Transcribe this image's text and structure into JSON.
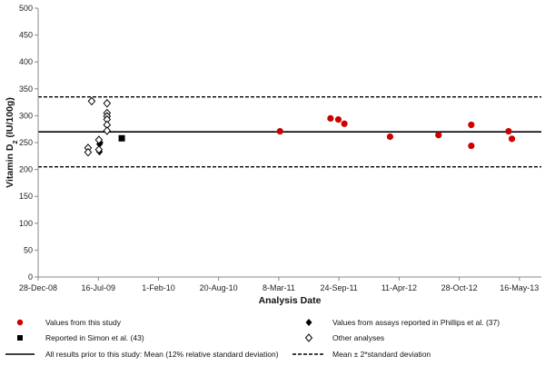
{
  "chart_data": {
    "type": "scatter",
    "xlabel": "Analysis Date",
    "ylabel_main": "Vitamin D",
    "ylabel_sub": "2",
    "ylabel_tail": " (IU/100g)",
    "ylim": [
      0,
      500
    ],
    "yticks": [
      0,
      50,
      100,
      150,
      200,
      250,
      300,
      350,
      400,
      450,
      500
    ],
    "xlim": [
      "2008-12-28",
      "2013-07-28"
    ],
    "xticks": [
      {
        "date": "2008-12-28",
        "label": "28-Dec-08"
      },
      {
        "date": "2009-07-16",
        "label": "16-Jul-09"
      },
      {
        "date": "2010-02-01",
        "label": "1-Feb-10"
      },
      {
        "date": "2010-08-20",
        "label": "20-Aug-10"
      },
      {
        "date": "2011-03-08",
        "label": "8-Mar-11"
      },
      {
        "date": "2011-09-24",
        "label": "24-Sep-11"
      },
      {
        "date": "2012-04-11",
        "label": "11-Apr-12"
      },
      {
        "date": "2012-10-28",
        "label": "28-Oct-12"
      },
      {
        "date": "2013-05-16",
        "label": "16-May-13"
      }
    ],
    "grid": false,
    "mean": 270,
    "upper": 335,
    "lower": 205,
    "series": [
      {
        "name": "Values from this study",
        "marker": "circle",
        "color": "#cc0000",
        "points": [
          {
            "x": "2011-03-12",
            "y": 271
          },
          {
            "x": "2011-08-27",
            "y": 295
          },
          {
            "x": "2011-09-22",
            "y": 293
          },
          {
            "x": "2011-10-12",
            "y": 285
          },
          {
            "x": "2012-03-12",
            "y": 261
          },
          {
            "x": "2012-08-20",
            "y": 264
          },
          {
            "x": "2012-12-07",
            "y": 283
          },
          {
            "x": "2012-12-07",
            "y": 244
          },
          {
            "x": "2013-04-10",
            "y": 271
          },
          {
            "x": "2013-04-21",
            "y": 257
          }
        ]
      },
      {
        "name": "Values from assays reported in Phillips et al. (37)",
        "marker": "diamond-filled",
        "color": "#000000",
        "points": [
          {
            "x": "2009-07-20",
            "y": 233
          },
          {
            "x": "2009-07-20",
            "y": 247
          },
          {
            "x": "2009-07-22",
            "y": 250
          }
        ]
      },
      {
        "name": "Reported in Simon et al. (43)",
        "marker": "square",
        "color": "#000000",
        "points": [
          {
            "x": "2009-10-02",
            "y": 258
          }
        ]
      },
      {
        "name": "Other analyses",
        "marker": "diamond-open",
        "color": "#000000",
        "points": [
          {
            "x": "2009-06-12",
            "y": 240
          },
          {
            "x": "2009-06-12",
            "y": 232
          },
          {
            "x": "2009-06-24",
            "y": 327
          },
          {
            "x": "2009-07-18",
            "y": 255
          },
          {
            "x": "2009-07-18",
            "y": 237
          },
          {
            "x": "2009-08-14",
            "y": 323
          },
          {
            "x": "2009-08-14",
            "y": 305
          },
          {
            "x": "2009-08-14",
            "y": 299
          },
          {
            "x": "2009-08-14",
            "y": 293
          },
          {
            "x": "2009-08-14",
            "y": 283
          },
          {
            "x": "2009-08-14",
            "y": 272
          }
        ]
      }
    ],
    "legend_lines": {
      "mean": "All results prior to this study:  Mean (12% relative standard deviation)",
      "sd": "Mean ± 2*standard deviation"
    }
  }
}
